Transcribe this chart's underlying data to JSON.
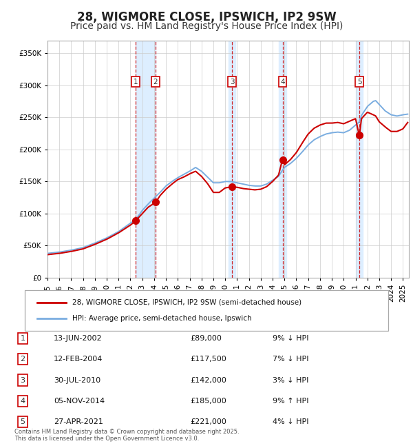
{
  "title": "28, WIGMORE CLOSE, IPSWICH, IP2 9SW",
  "subtitle": "Price paid vs. HM Land Registry's House Price Index (HPI)",
  "property_label": "28, WIGMORE CLOSE, IPSWICH, IP2 9SW (semi-detached house)",
  "hpi_label": "HPI: Average price, semi-detached house, Ipswich",
  "footer": "Contains HM Land Registry data © Crown copyright and database right 2025.\nThis data is licensed under the Open Government Licence v3.0.",
  "sales": [
    {
      "num": 1,
      "date": "13-JUN-2002",
      "price": 89000,
      "pct": "9%",
      "dir": "↓",
      "x_year": 2002.45
    },
    {
      "num": 2,
      "date": "12-FEB-2004",
      "price": 117500,
      "pct": "7%",
      "dir": "↓",
      "x_year": 2004.12
    },
    {
      "num": 3,
      "date": "30-JUL-2010",
      "price": 142000,
      "pct": "3%",
      "dir": "↓",
      "x_year": 2010.58
    },
    {
      "num": 4,
      "date": "05-NOV-2014",
      "price": 185000,
      "pct": "9%",
      "dir": "↑",
      "x_year": 2014.84
    },
    {
      "num": 5,
      "date": "27-APR-2021",
      "price": 221000,
      "pct": "4%",
      "dir": "↓",
      "x_year": 2021.32
    }
  ],
  "ylim": [
    0,
    370000
  ],
  "xlim_start": 1995.0,
  "xlim_end": 2025.5,
  "red_color": "#cc0000",
  "blue_color": "#7aade0",
  "shade_color": "#ddeeff",
  "grid_color": "#cccccc",
  "bg_color": "#ffffff",
  "title_fontsize": 12,
  "subtitle_fontsize": 10
}
